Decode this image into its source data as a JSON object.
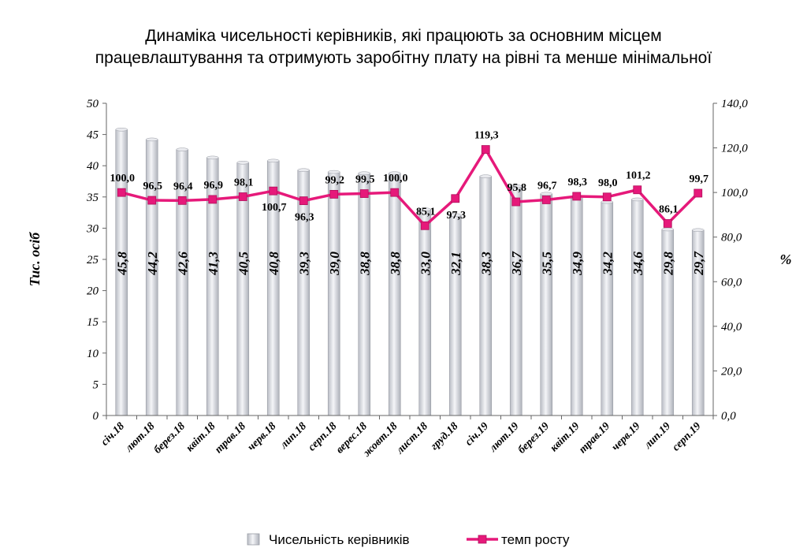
{
  "chart_data": {
    "type": "bar",
    "title_lines": [
      "Динаміка чисельності керівників, які працюють за основним місцем",
      "працевлаштування та отримують заробітну плату на рівні та менше мінімальної"
    ],
    "categories": [
      "січ.18",
      "лют.18",
      "берез.18",
      "квіт.18",
      "трав.18",
      "черв.18",
      "лип.18",
      "серп.18",
      "верес.18",
      "жовт.18",
      "лист.18",
      "груд.18",
      "січ.19",
      "лют.19",
      "берез.19",
      "квіт.19",
      "трав.19",
      "черв.19",
      "лип.19",
      "серп.19"
    ],
    "series": [
      {
        "name": "Чисельність керівників",
        "kind": "bar",
        "axis": "left",
        "values": [
          45.8,
          44.2,
          42.6,
          41.3,
          40.5,
          40.8,
          39.3,
          39.0,
          38.8,
          38.8,
          33.0,
          32.1,
          38.3,
          36.7,
          35.5,
          34.9,
          34.2,
          34.6,
          29.8,
          29.7
        ],
        "labels": [
          "45,8",
          "44,2",
          "42,6",
          "41,3",
          "40,5",
          "40,8",
          "39,3",
          "39,0",
          "38,8",
          "38,8",
          "33,0",
          "32,1",
          "38,3",
          "36,7",
          "35,5",
          "34,9",
          "34,2",
          "34,6",
          "29,8",
          "29,7"
        ]
      },
      {
        "name": "темп росту",
        "kind": "line",
        "axis": "right",
        "color": "#e6197a",
        "values": [
          100.0,
          96.5,
          96.4,
          96.9,
          98.1,
          100.7,
          96.3,
          99.2,
          99.5,
          100.0,
          85.1,
          97.3,
          119.3,
          95.8,
          96.7,
          98.3,
          98.0,
          101.2,
          86.1,
          99.7
        ],
        "labels": [
          "100,0",
          "96,5",
          "96,4",
          "96,9",
          "98,1",
          "100,7",
          "96,3",
          "99,2",
          "99,5",
          "100,0",
          "85,1",
          "97,3",
          "119,3",
          "95,8",
          "96,7",
          "98,3",
          "98,0",
          "101,2",
          "86,1",
          "99,7"
        ]
      }
    ],
    "ylabel_left": "Тис. осіб",
    "ylabel_right": "%",
    "ylim_left": [
      0,
      50
    ],
    "ylim_right": [
      0,
      140
    ],
    "yticks_left": [
      "0",
      "5",
      "10",
      "15",
      "20",
      "25",
      "30",
      "35",
      "40",
      "45",
      "50"
    ],
    "yticks_right": [
      "0,0",
      "20,0",
      "40,0",
      "60,0",
      "80,0",
      "100,0",
      "120,0",
      "140,0"
    ],
    "legend_position": "bottom",
    "grid": false
  }
}
